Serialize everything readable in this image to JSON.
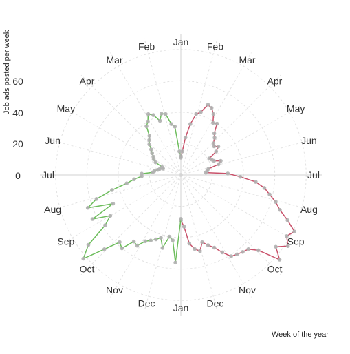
{
  "chart_data": {
    "type": "line",
    "title": "",
    "ylabel": "Job ads posted per week",
    "xlabel": "Week of the year",
    "yticks": [
      "60",
      "40",
      "20",
      "0"
    ],
    "ylim": [
      -20,
      70
    ],
    "grid": true,
    "months_right": [
      "Jan",
      "Feb",
      "Mar",
      "Apr",
      "May",
      "Jun",
      "Jul",
      "Aug",
      "Sep",
      "Oct",
      "Nov",
      "Dec",
      "Jan"
    ],
    "months_left": [
      "Jan",
      "Feb",
      "Mar",
      "Apr",
      "May",
      "Jun",
      "Jul",
      "Aug",
      "Sep",
      "Oct",
      "Nov",
      "Dec"
    ],
    "series": [
      {
        "color": "#c9516a",
        "side": "right",
        "x": [
          1,
          2,
          3,
          4,
          5,
          6,
          7,
          8,
          9,
          10,
          11,
          12,
          13,
          14,
          15,
          16,
          17,
          18,
          19,
          20,
          21,
          22,
          23,
          24,
          25,
          26,
          27,
          28,
          29,
          30,
          31,
          32,
          33,
          34,
          35,
          36,
          37,
          38,
          39,
          40,
          41,
          42,
          43,
          44,
          45,
          46,
          47,
          48,
          49,
          50,
          51,
          52
        ],
        "values": [
          -9,
          -5,
          4,
          13,
          20,
          22,
          28,
          27,
          24,
          19,
          20,
          14,
          12,
          9,
          8,
          10,
          7,
          1,
          2,
          3,
          7,
          5,
          -2,
          -3,
          -4,
          10,
          18,
          28,
          34,
          38,
          43,
          47,
          54,
          61,
          58,
          62,
          56,
          63,
          49,
          44,
          43,
          42,
          41,
          36,
          31,
          28,
          25,
          30,
          28,
          24,
          13,
          9
        ]
      },
      {
        "color": "#6dbd5c",
        "side": "left",
        "x": [
          1,
          2,
          3,
          4,
          5,
          6,
          7,
          8,
          9,
          10,
          11,
          12,
          13,
          14,
          15,
          16,
          17,
          18,
          19,
          20,
          21,
          22,
          23,
          24,
          25,
          26,
          27,
          28,
          29,
          30,
          31,
          32,
          33,
          34,
          35,
          36,
          37,
          38,
          39,
          40,
          41,
          42,
          43,
          44,
          45,
          46,
          47,
          48,
          49,
          50,
          51,
          52
        ],
        "values": [
          -8,
          -5,
          11,
          13,
          20,
          21,
          17,
          22,
          24,
          20,
          18,
          12,
          10,
          8,
          5,
          3,
          1,
          0,
          -2,
          -7,
          -8,
          -6,
          -5,
          -3,
          -2,
          5,
          5,
          10,
          15,
          25,
          36,
          43,
          27,
          43,
          32,
          38,
          54,
          62,
          48,
          38,
          40,
          32,
          33,
          28,
          26,
          24,
          22,
          28,
          20,
          22,
          36,
          8
        ]
      }
    ]
  }
}
